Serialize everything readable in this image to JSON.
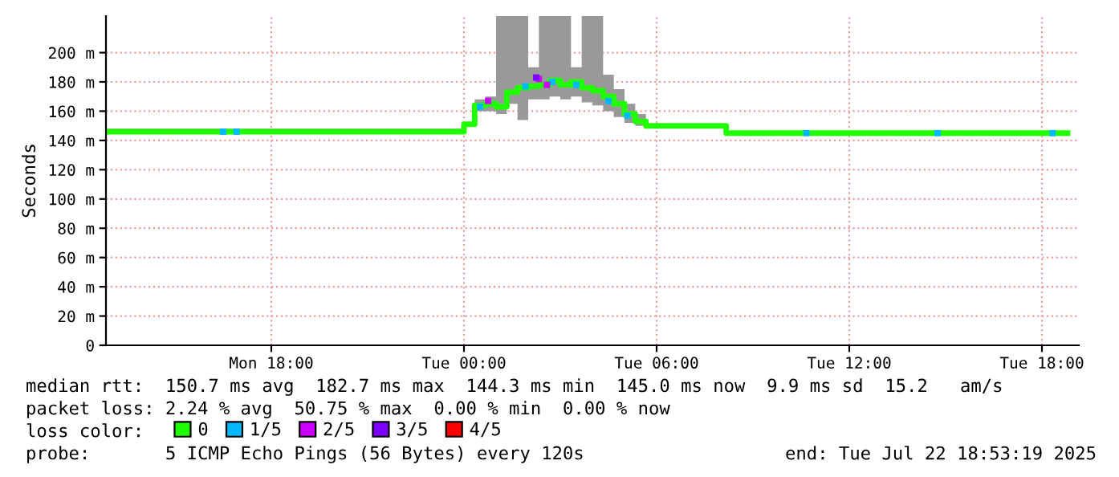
{
  "chart_data": {
    "type": "step",
    "ylabel": "Seconds",
    "xlim": [
      "2025-07-21T12:51",
      "2025-07-22T19:09"
    ],
    "xticks": [
      {
        "value": "2025-07-21T18:00",
        "label": "Mon 18:00"
      },
      {
        "value": "2025-07-22T00:00",
        "label": "Tue 00:00"
      },
      {
        "value": "2025-07-22T06:00",
        "label": "Tue 06:00"
      },
      {
        "value": "2025-07-22T12:00",
        "label": "Tue 12:00"
      },
      {
        "value": "2025-07-22T18:00",
        "label": "Tue 18:00"
      }
    ],
    "ylim": [
      0,
      225
    ],
    "yticks": [
      0,
      {
        "value": 20,
        "label": "20 m"
      },
      {
        "value": 40,
        "label": "40 m"
      },
      {
        "value": 60,
        "label": "60 m"
      },
      {
        "value": 80,
        "label": "80 m"
      },
      {
        "value": 100,
        "label": "100 m"
      },
      {
        "value": 120,
        "label": "120 m"
      },
      {
        "value": 140,
        "label": "140 m"
      },
      {
        "value": 160,
        "label": "160 m"
      },
      {
        "value": 180,
        "label": "180 m"
      },
      {
        "value": 200,
        "label": "200 m"
      }
    ],
    "grid": true,
    "legend": "bottom",
    "series": [
      {
        "name": "0",
        "color": "#20ff00",
        "x": [
          "2025-07-21T12:51",
          "2025-07-22T00:00",
          "2025-07-22T00:20",
          "2025-07-22T00:40",
          "2025-07-22T01:00",
          "2025-07-22T01:20",
          "2025-07-22T01:40",
          "2025-07-22T02:00",
          "2025-07-22T02:20",
          "2025-07-22T02:40",
          "2025-07-22T03:00",
          "2025-07-22T03:20",
          "2025-07-22T03:40",
          "2025-07-22T04:00",
          "2025-07-22T04:20",
          "2025-07-22T04:40",
          "2025-07-22T05:00",
          "2025-07-22T05:20",
          "2025-07-22T05:40",
          "2025-07-22T08:10",
          "2025-07-22T18:48"
        ],
        "values": [
          146,
          151,
          164,
          165,
          163,
          173,
          176,
          177,
          178,
          181,
          178,
          180,
          176,
          174,
          170,
          165,
          158,
          153,
          150,
          145,
          145
        ],
        "lower": [
          145,
          150,
          160,
          160,
          158,
          165,
          154,
          168,
          168,
          170,
          168,
          170,
          166,
          164,
          160,
          156,
          152,
          150,
          150,
          145,
          145
        ],
        "upper": [
          148,
          152,
          168,
          170,
          225,
          225,
          225,
          190,
          225,
          225,
          225,
          190,
          225,
          225,
          185,
          175,
          165,
          158,
          151,
          146,
          146
        ]
      },
      {
        "name": "1/5",
        "type": "scatter",
        "color": "#00b8ff",
        "x": [
          "2025-07-21T16:30",
          "2025-07-21T16:55",
          "2025-07-22T00:30",
          "2025-07-22T01:55",
          "2025-07-22T02:45",
          "2025-07-22T03:30",
          "2025-07-22T04:30",
          "2025-07-22T05:05",
          "2025-07-22T10:40",
          "2025-07-22T14:45",
          "2025-07-22T18:20"
        ],
        "values": [
          146,
          146,
          163,
          177,
          180,
          178,
          167,
          157,
          145,
          145,
          145
        ]
      },
      {
        "name": "2/5",
        "type": "scatter",
        "color": "#cc00ff",
        "x": [
          "2025-07-22T00:45",
          "2025-07-22T02:20",
          "2025-07-22T02:35"
        ],
        "values": [
          167,
          182,
          178
        ]
      },
      {
        "name": "3/5",
        "type": "scatter",
        "color": "#7c00ff",
        "x": [
          "2025-07-22T02:15"
        ],
        "values": [
          183
        ]
      },
      {
        "name": "4/5",
        "type": "scatter",
        "color": "#ff0000"
      }
    ],
    "annotations": [
      "median rtt:  150.7 ms avg  182.7 ms max  144.3 ms min  145.0 ms now  9.9 ms sd  15.2   am/s",
      "packet loss: 2.24 % avg  50.75 % max  0.00 % min  0.00 % now",
      "loss color:",
      "probe:       5 ICMP Echo Pings (56 Bytes) every 120s",
      "end: Tue Jul 22 18:53:19 2025"
    ]
  }
}
